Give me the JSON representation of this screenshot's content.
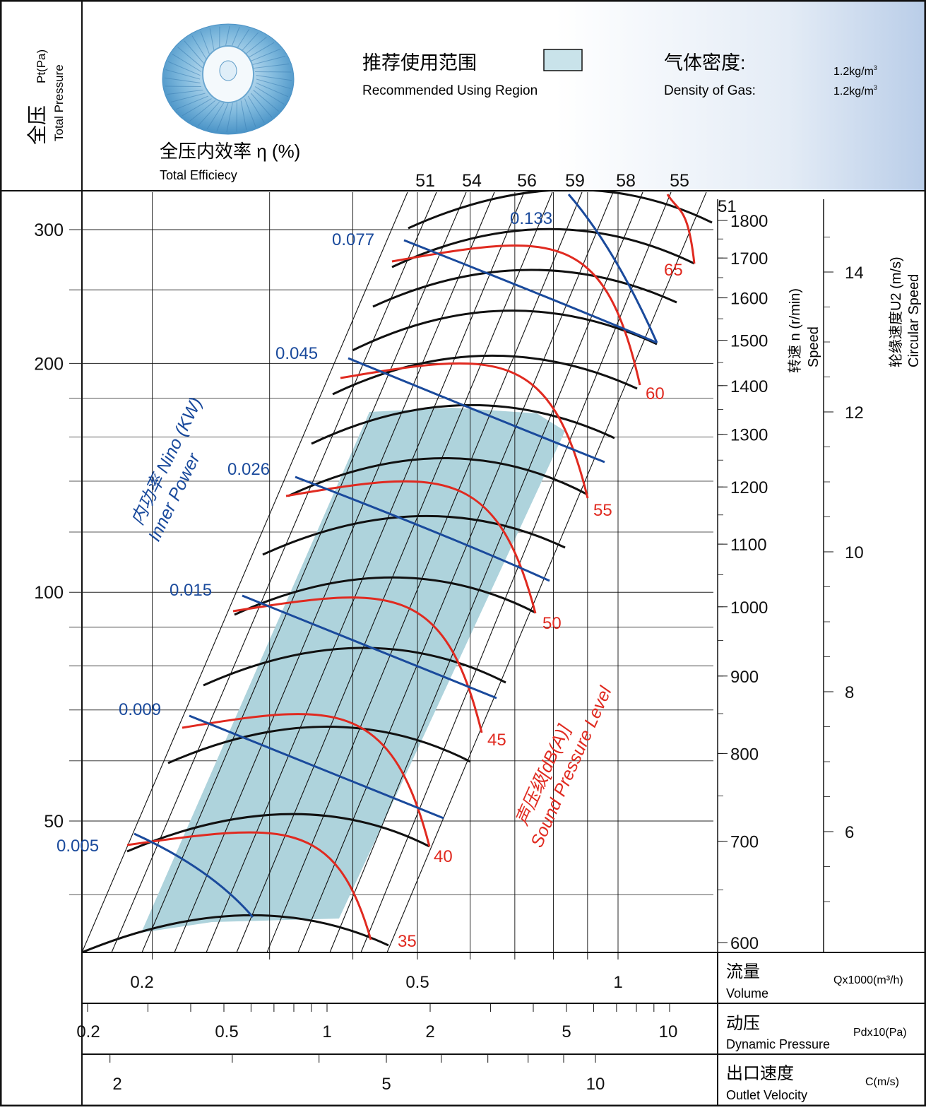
{
  "header": {
    "pressure_cn": "全压",
    "pressure_unit": "Pt(Pa)",
    "pressure_en": "Total Pressure",
    "efficiency_cn": "全压内效率 η (%)",
    "efficiency_en": "Total Efficiecy",
    "recommended_cn": "推荐使用范围",
    "recommended_en": "Recommended Using Region",
    "density_cn": "气体密度:",
    "density_en": "Density of Gas:",
    "density_value_1": "1.2kg/m",
    "density_value_2": "1.2kg/m",
    "density_sup": "3"
  },
  "labels": {
    "speed_cn": "转速 n (r/min)",
    "speed_en": "Speed",
    "circular_cn": "轮缘速度U2 (m/s)",
    "circular_en": "Circular Speed",
    "power_cn": "内功率 Nino (KW)",
    "power_en": "Inner Power",
    "sound_cn": "声压级[dB(A)]",
    "sound_en": "Sound Pressure Level",
    "volume_cn": "流量",
    "volume_en": "Volume",
    "volume_unit": "Qx1000(m³/h)",
    "dyn_cn": "动压",
    "dyn_en": "Dynamic Pressure",
    "dyn_unit": "Pdx10(Pa)",
    "vel_cn": "出口速度",
    "vel_en": "Outlet Velocity",
    "vel_unit": "C(m/s)"
  },
  "colors": {
    "speed_curve": "#111111",
    "power_curve": "#1a4a9c",
    "sound_curve": "#e02a20",
    "recommended_region": "#aed3dc",
    "power_label": "#1a4a9c",
    "sound_label": "#e02a20"
  },
  "chart_data": {
    "type": "line",
    "y_axis": {
      "label": "Pt(Pa)",
      "ticks": [
        50,
        100,
        200,
        300
      ],
      "scale": "log"
    },
    "efficiency_ticks": [
      51,
      54,
      56,
      59,
      58,
      55
    ],
    "speed_ticks": [
      600,
      700,
      800,
      900,
      1000,
      1100,
      1200,
      1300,
      1400,
      1500,
      1600,
      1700,
      1800
    ],
    "speed_top_label": "51",
    "circular_speed_ticks": [
      6,
      8,
      10,
      12,
      14
    ],
    "volume_ticks": [
      "0.2",
      "0.5",
      "1"
    ],
    "dynamic_pressure_ticks": [
      "0.2",
      "0.5",
      "1",
      "2",
      "5",
      "10"
    ],
    "outlet_velocity_ticks": [
      "2",
      "5",
      "10"
    ],
    "power_curves": [
      "0.005",
      "0.009",
      "0.015",
      "0.026",
      "0.045",
      "0.077",
      "0.133"
    ],
    "sound_curves": [
      "35",
      "40",
      "45",
      "50",
      "55",
      "60",
      "65"
    ],
    "recommended_region": "shaded band between efficiency rays 51 and 59",
    "legend": "top"
  }
}
